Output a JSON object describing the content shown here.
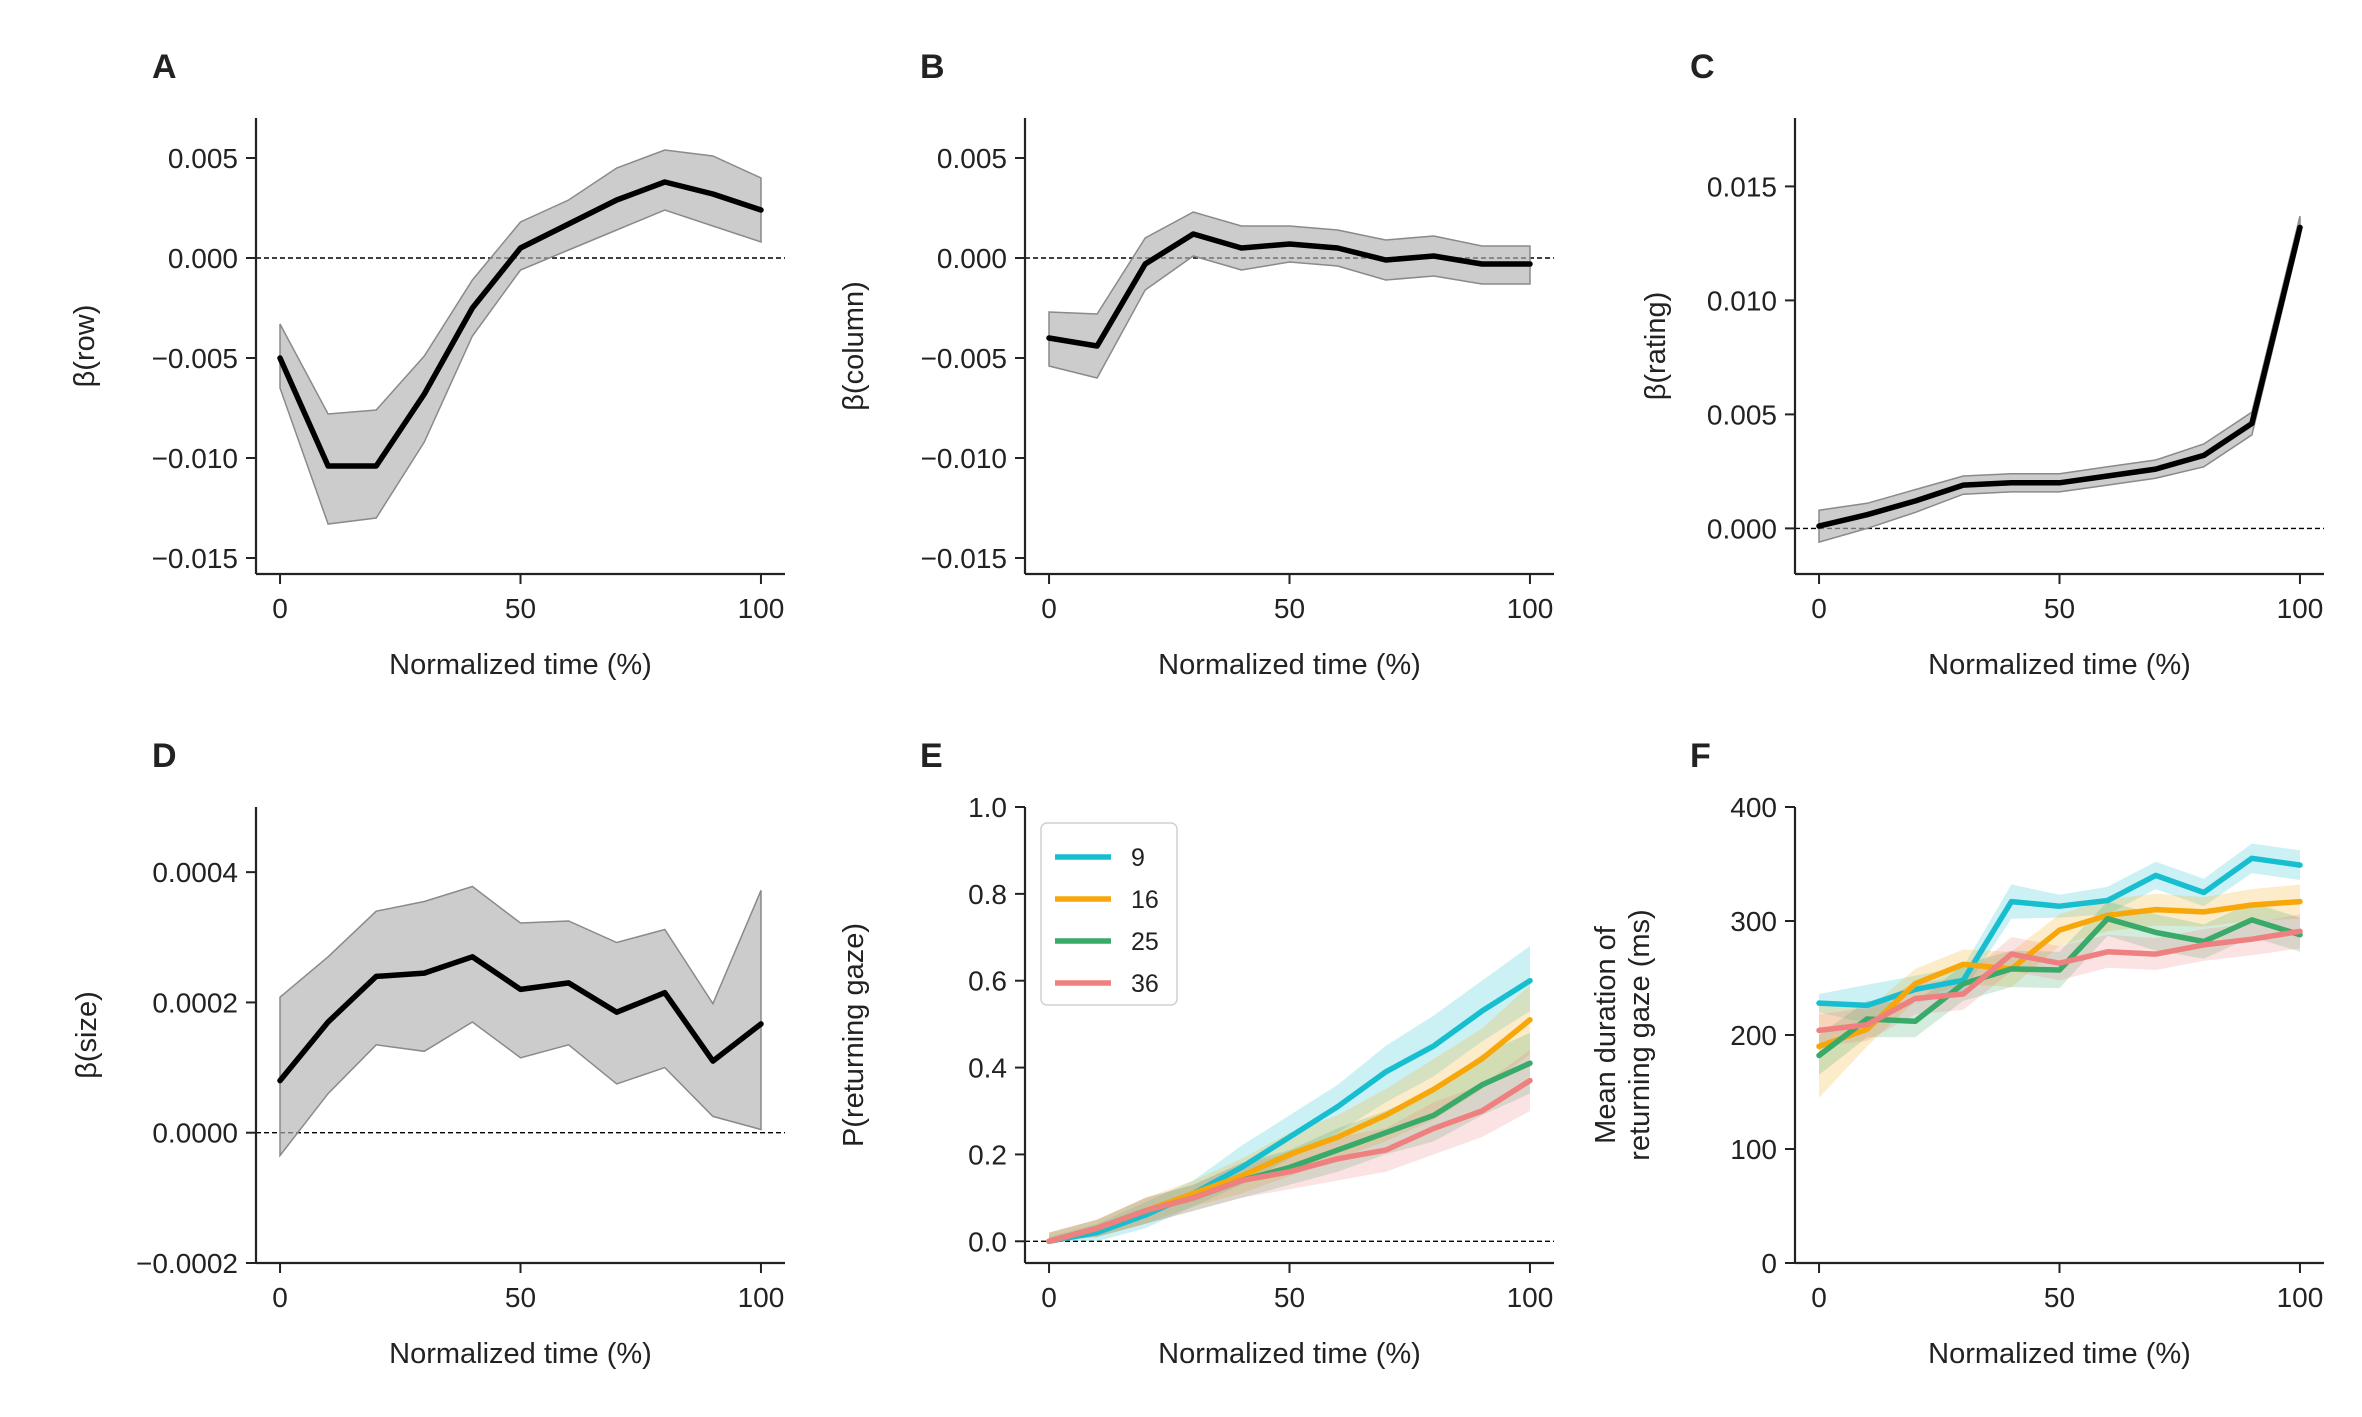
{
  "chart_data": [
    {
      "panel": "A",
      "type": "line",
      "xlabel": "Normalized time (%)",
      "ylabel": "β(row)",
      "xlim": [
        -5,
        105
      ],
      "ylim": [
        -0.0158,
        0.007
      ],
      "xticks": [
        0,
        50,
        100
      ],
      "xtick_labels": [
        "0",
        "50",
        "100"
      ],
      "yticks": [
        0.005,
        0.0,
        -0.005,
        -0.01,
        -0.015
      ],
      "ytick_labels": [
        "0.005",
        "0.000",
        "−0.005",
        "−0.010",
        "−0.015"
      ],
      "zero_line": true,
      "x": [
        0,
        10,
        20,
        30,
        40,
        50,
        60,
        70,
        80,
        90,
        100
      ],
      "series": [
        {
          "color": "#000000",
          "values": [
            -0.005,
            -0.0104,
            -0.0104,
            -0.0068,
            -0.0025,
            0.0005,
            0.0017,
            0.0029,
            0.0038,
            0.0032,
            0.0024
          ],
          "lower": [
            -0.0065,
            -0.0133,
            -0.013,
            -0.0092,
            -0.0039,
            -0.0006,
            0.0004,
            0.0014,
            0.0024,
            0.0016,
            0.0008
          ],
          "upper": [
            -0.0033,
            -0.0078,
            -0.0076,
            -0.0049,
            -0.0011,
            0.0018,
            0.0029,
            0.0045,
            0.0054,
            0.0051,
            0.004
          ]
        }
      ]
    },
    {
      "panel": "B",
      "type": "line",
      "xlabel": "Normalized time (%)",
      "ylabel": "β(column)",
      "xlim": [
        -5,
        105
      ],
      "ylim": [
        -0.0158,
        0.007
      ],
      "xticks": [
        0,
        50,
        100
      ],
      "xtick_labels": [
        "0",
        "50",
        "100"
      ],
      "yticks": [
        0.005,
        0.0,
        -0.005,
        -0.01,
        -0.015
      ],
      "ytick_labels": [
        "0.005",
        "0.000",
        "−0.005",
        "−0.010",
        "−0.015"
      ],
      "zero_line": true,
      "x": [
        0,
        10,
        20,
        30,
        40,
        50,
        60,
        70,
        80,
        90,
        100
      ],
      "series": [
        {
          "color": "#000000",
          "values": [
            -0.004,
            -0.0044,
            -0.0003,
            0.0012,
            0.0005,
            0.0007,
            0.0005,
            -0.0001,
            0.0001,
            -0.0003,
            -0.0003
          ],
          "lower": [
            -0.0054,
            -0.006,
            -0.0016,
            0.0001,
            -0.0006,
            -0.0002,
            -0.0004,
            -0.0011,
            -0.0009,
            -0.0013,
            -0.0013
          ],
          "upper": [
            -0.0027,
            -0.0028,
            0.001,
            0.0023,
            0.0016,
            0.0016,
            0.0014,
            0.0009,
            0.0011,
            0.0006,
            0.0006
          ]
        }
      ]
    },
    {
      "panel": "C",
      "type": "line",
      "xlabel": "Normalized time (%)",
      "ylabel": "β(rating)",
      "xlim": [
        -5,
        105
      ],
      "ylim": [
        -0.002,
        0.018
      ],
      "xticks": [
        0,
        50,
        100
      ],
      "xtick_labels": [
        "0",
        "50",
        "100"
      ],
      "yticks": [
        0.015,
        0.01,
        0.005,
        0.0
      ],
      "ytick_labels": [
        "0.015",
        "0.010",
        "0.005",
        "0.000"
      ],
      "zero_line": true,
      "x": [
        0,
        10,
        20,
        30,
        40,
        50,
        60,
        70,
        80,
        90,
        100
      ],
      "series": [
        {
          "color": "#000000",
          "values": [
            0.0001,
            0.0006,
            0.0012,
            0.0019,
            0.002,
            0.002,
            0.0023,
            0.0026,
            0.0032,
            0.0046,
            0.0132
          ],
          "lower": [
            -0.0006,
            0.0,
            0.0007,
            0.0015,
            0.0016,
            0.0016,
            0.0019,
            0.0022,
            0.0027,
            0.0041,
            0.0128
          ],
          "upper": [
            0.0008,
            0.0011,
            0.0017,
            0.0023,
            0.0024,
            0.0024,
            0.0027,
            0.003,
            0.0037,
            0.0051,
            0.0137
          ]
        }
      ]
    },
    {
      "panel": "D",
      "type": "line",
      "xlabel": "Normalized time (%)",
      "ylabel": "β(size)",
      "xlim": [
        -5,
        105
      ],
      "ylim": [
        -0.0002,
        0.0005
      ],
      "xticks": [
        0,
        50,
        100
      ],
      "xtick_labels": [
        "0",
        "50",
        "100"
      ],
      "yticks": [
        0.0004,
        0.0002,
        0.0,
        -0.0002
      ],
      "ytick_labels": [
        "0.0004",
        "0.0002",
        "0.0000",
        "−0.0002"
      ],
      "zero_line": true,
      "x": [
        0,
        10,
        20,
        30,
        40,
        50,
        60,
        70,
        80,
        90,
        100
      ],
      "series": [
        {
          "color": "#000000",
          "values": [
            8e-05,
            0.00017,
            0.00024,
            0.000245,
            0.00027,
            0.00022,
            0.00023,
            0.000185,
            0.000215,
            0.00011,
            0.000167
          ],
          "lower": [
            -3.5e-05,
            6e-05,
            0.000135,
            0.000125,
            0.00017,
            0.000115,
            0.000135,
            7.5e-05,
            0.0001,
            2.5e-05,
            5e-06
          ],
          "upper": [
            0.000208,
            0.00027,
            0.00034,
            0.000355,
            0.000378,
            0.000322,
            0.000325,
            0.000292,
            0.000312,
            0.000198,
            0.000372
          ]
        }
      ]
    },
    {
      "panel": "E",
      "type": "line",
      "xlabel": "Normalized time (%)",
      "ylabel": "P(returning gaze)",
      "xlim": [
        -5,
        105
      ],
      "ylim": [
        -0.05,
        1.0
      ],
      "xticks": [
        0,
        50,
        100
      ],
      "xtick_labels": [
        "0",
        "50",
        "100"
      ],
      "yticks": [
        1.0,
        0.8,
        0.6,
        0.4,
        0.2,
        0.0
      ],
      "ytick_labels": [
        "1.0",
        "0.8",
        "0.6",
        "0.4",
        "0.2",
        "0.0"
      ],
      "zero_line": true,
      "legend": "upper-left",
      "x": [
        0,
        10,
        20,
        30,
        40,
        50,
        60,
        70,
        80,
        90,
        100
      ],
      "series": [
        {
          "name": "9",
          "color": "#17becf",
          "values": [
            0.0,
            0.02,
            0.06,
            0.11,
            0.17,
            0.24,
            0.31,
            0.39,
            0.45,
            0.53,
            0.6
          ],
          "lower": [
            0.0,
            0.0,
            0.03,
            0.08,
            0.13,
            0.19,
            0.25,
            0.32,
            0.38,
            0.46,
            0.53
          ],
          "upper": [
            0.01,
            0.04,
            0.09,
            0.14,
            0.22,
            0.29,
            0.36,
            0.45,
            0.52,
            0.6,
            0.68
          ]
        },
        {
          "name": "16",
          "color": "#f7a70a",
          "values": [
            0.0,
            0.03,
            0.07,
            0.11,
            0.15,
            0.2,
            0.24,
            0.29,
            0.35,
            0.42,
            0.51
          ],
          "lower": [
            0.0,
            0.01,
            0.04,
            0.08,
            0.11,
            0.15,
            0.19,
            0.23,
            0.28,
            0.35,
            0.43
          ],
          "upper": [
            0.02,
            0.05,
            0.1,
            0.14,
            0.19,
            0.25,
            0.29,
            0.35,
            0.42,
            0.49,
            0.59
          ]
        },
        {
          "name": "25",
          "color": "#3aaa6a",
          "values": [
            0.0,
            0.03,
            0.07,
            0.1,
            0.14,
            0.17,
            0.21,
            0.25,
            0.29,
            0.36,
            0.41
          ],
          "lower": [
            0.0,
            0.01,
            0.04,
            0.07,
            0.1,
            0.13,
            0.16,
            0.2,
            0.23,
            0.29,
            0.34
          ],
          "upper": [
            0.02,
            0.05,
            0.1,
            0.13,
            0.18,
            0.21,
            0.26,
            0.3,
            0.35,
            0.43,
            0.48
          ]
        },
        {
          "name": "36",
          "color": "#ee8080",
          "values": [
            0.0,
            0.03,
            0.07,
            0.1,
            0.14,
            0.16,
            0.19,
            0.21,
            0.26,
            0.3,
            0.37
          ],
          "lower": [
            0.0,
            0.01,
            0.04,
            0.07,
            0.1,
            0.12,
            0.14,
            0.16,
            0.2,
            0.24,
            0.3
          ],
          "upper": [
            0.02,
            0.05,
            0.1,
            0.13,
            0.18,
            0.2,
            0.24,
            0.26,
            0.32,
            0.36,
            0.44
          ]
        }
      ]
    },
    {
      "panel": "F",
      "type": "line",
      "xlabel": "Normalized time (%)",
      "ylabel": [
        "Mean duration of",
        "returning gaze (ms)"
      ],
      "xlim": [
        -5,
        105
      ],
      "ylim": [
        0,
        400
      ],
      "xticks": [
        0,
        50,
        100
      ],
      "xtick_labels": [
        "0",
        "50",
        "100"
      ],
      "yticks": [
        400,
        300,
        200,
        100,
        0
      ],
      "ytick_labels": [
        "400",
        "300",
        "200",
        "100",
        "0"
      ],
      "zero_line": false,
      "x": [
        0,
        10,
        20,
        30,
        40,
        50,
        60,
        70,
        80,
        90,
        100
      ],
      "series": [
        {
          "name": "9",
          "color": "#17becf",
          "values": [
            228,
            226,
            240,
            248,
            317,
            313,
            318,
            340,
            325,
            355,
            349
          ],
          "lower": [
            220,
            210,
            228,
            238,
            302,
            303,
            306,
            328,
            313,
            342,
            336
          ],
          "upper": [
            236,
            244,
            252,
            260,
            332,
            323,
            330,
            352,
            337,
            368,
            362
          ]
        },
        {
          "name": "16",
          "color": "#f7a70a",
          "values": [
            190,
            205,
            245,
            262,
            258,
            292,
            305,
            310,
            308,
            314,
            317
          ],
          "lower": [
            145,
            190,
            230,
            245,
            242,
            278,
            291,
            296,
            295,
            300,
            302
          ],
          "upper": [
            230,
            222,
            258,
            275,
            273,
            306,
            319,
            324,
            321,
            328,
            332
          ]
        },
        {
          "name": "25",
          "color": "#3aaa6a",
          "values": [
            182,
            214,
            212,
            245,
            258,
            257,
            302,
            290,
            282,
            301,
            288
          ],
          "lower": [
            165,
            198,
            198,
            230,
            242,
            241,
            287,
            274,
            267,
            286,
            273
          ],
          "upper": [
            200,
            230,
            228,
            262,
            274,
            273,
            317,
            306,
            297,
            316,
            303
          ]
        },
        {
          "name": "36",
          "color": "#ee8080",
          "values": [
            204,
            209,
            232,
            236,
            271,
            263,
            273,
            271,
            279,
            284,
            291
          ],
          "lower": [
            190,
            195,
            218,
            222,
            256,
            248,
            259,
            257,
            265,
            270,
            276
          ],
          "upper": [
            218,
            224,
            246,
            250,
            286,
            278,
            288,
            285,
            293,
            298,
            306
          ]
        }
      ]
    }
  ]
}
